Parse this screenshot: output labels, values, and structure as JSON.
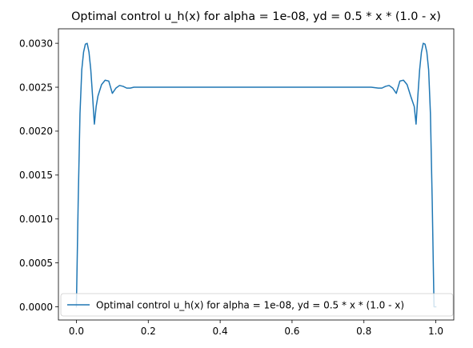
{
  "chart_data": {
    "type": "line",
    "title": "Optimal control u_h(x) for alpha = 1e-08, yd = 0.5 * x * (1.0 - x)",
    "xlabel": "",
    "ylabel": "",
    "xlim": [
      -0.05,
      1.05
    ],
    "ylim": [
      -0.00015,
      0.003165
    ],
    "xticks": [
      0.0,
      0.2,
      0.4,
      0.6,
      0.8,
      1.0
    ],
    "xtick_labels": [
      "0.0",
      "0.2",
      "0.4",
      "0.6",
      "0.8",
      "1.0"
    ],
    "yticks": [
      0.0,
      0.0005,
      0.001,
      0.0015,
      0.002,
      0.0025,
      0.003
    ],
    "ytick_labels": [
      "0.0000",
      "0.0005",
      "0.0010",
      "0.0015",
      "0.0020",
      "0.0025",
      "0.0030"
    ],
    "grid": false,
    "legend_position": "bottom-right",
    "series": [
      {
        "name": "Optimal control u_h(x) for alpha = 1e-08, yd = 0.5 * x * (1.0 - x)",
        "color": "#1f77b4",
        "x": [
          0.0,
          0.005,
          0.01,
          0.015,
          0.02,
          0.025,
          0.03,
          0.035,
          0.04,
          0.045,
          0.05,
          0.055,
          0.06,
          0.07,
          0.08,
          0.09,
          0.1,
          0.11,
          0.12,
          0.13,
          0.14,
          0.15,
          0.16,
          0.18,
          0.2,
          0.25,
          0.3,
          0.4,
          0.5,
          0.6,
          0.7,
          0.75,
          0.8,
          0.82,
          0.84,
          0.85,
          0.86,
          0.87,
          0.88,
          0.89,
          0.9,
          0.91,
          0.92,
          0.93,
          0.94,
          0.945,
          0.95,
          0.955,
          0.96,
          0.965,
          0.97,
          0.975,
          0.98,
          0.985,
          0.99,
          0.995,
          1.0
        ],
        "y": [
          0.0,
          0.0012,
          0.0022,
          0.0027,
          0.0029,
          0.00299,
          0.003,
          0.0029,
          0.0027,
          0.0024,
          0.00208,
          0.00228,
          0.0024,
          0.00253,
          0.00258,
          0.00257,
          0.00243,
          0.00249,
          0.00252,
          0.00251,
          0.00249,
          0.00249,
          0.0025,
          0.0025,
          0.0025,
          0.0025,
          0.0025,
          0.0025,
          0.0025,
          0.0025,
          0.0025,
          0.0025,
          0.0025,
          0.0025,
          0.00249,
          0.00249,
          0.00251,
          0.00252,
          0.00249,
          0.00243,
          0.00257,
          0.00258,
          0.00253,
          0.0024,
          0.00228,
          0.00208,
          0.0024,
          0.0027,
          0.0029,
          0.003,
          0.00299,
          0.0029,
          0.0027,
          0.0022,
          0.0012,
          0.0,
          0.0
        ]
      }
    ]
  }
}
